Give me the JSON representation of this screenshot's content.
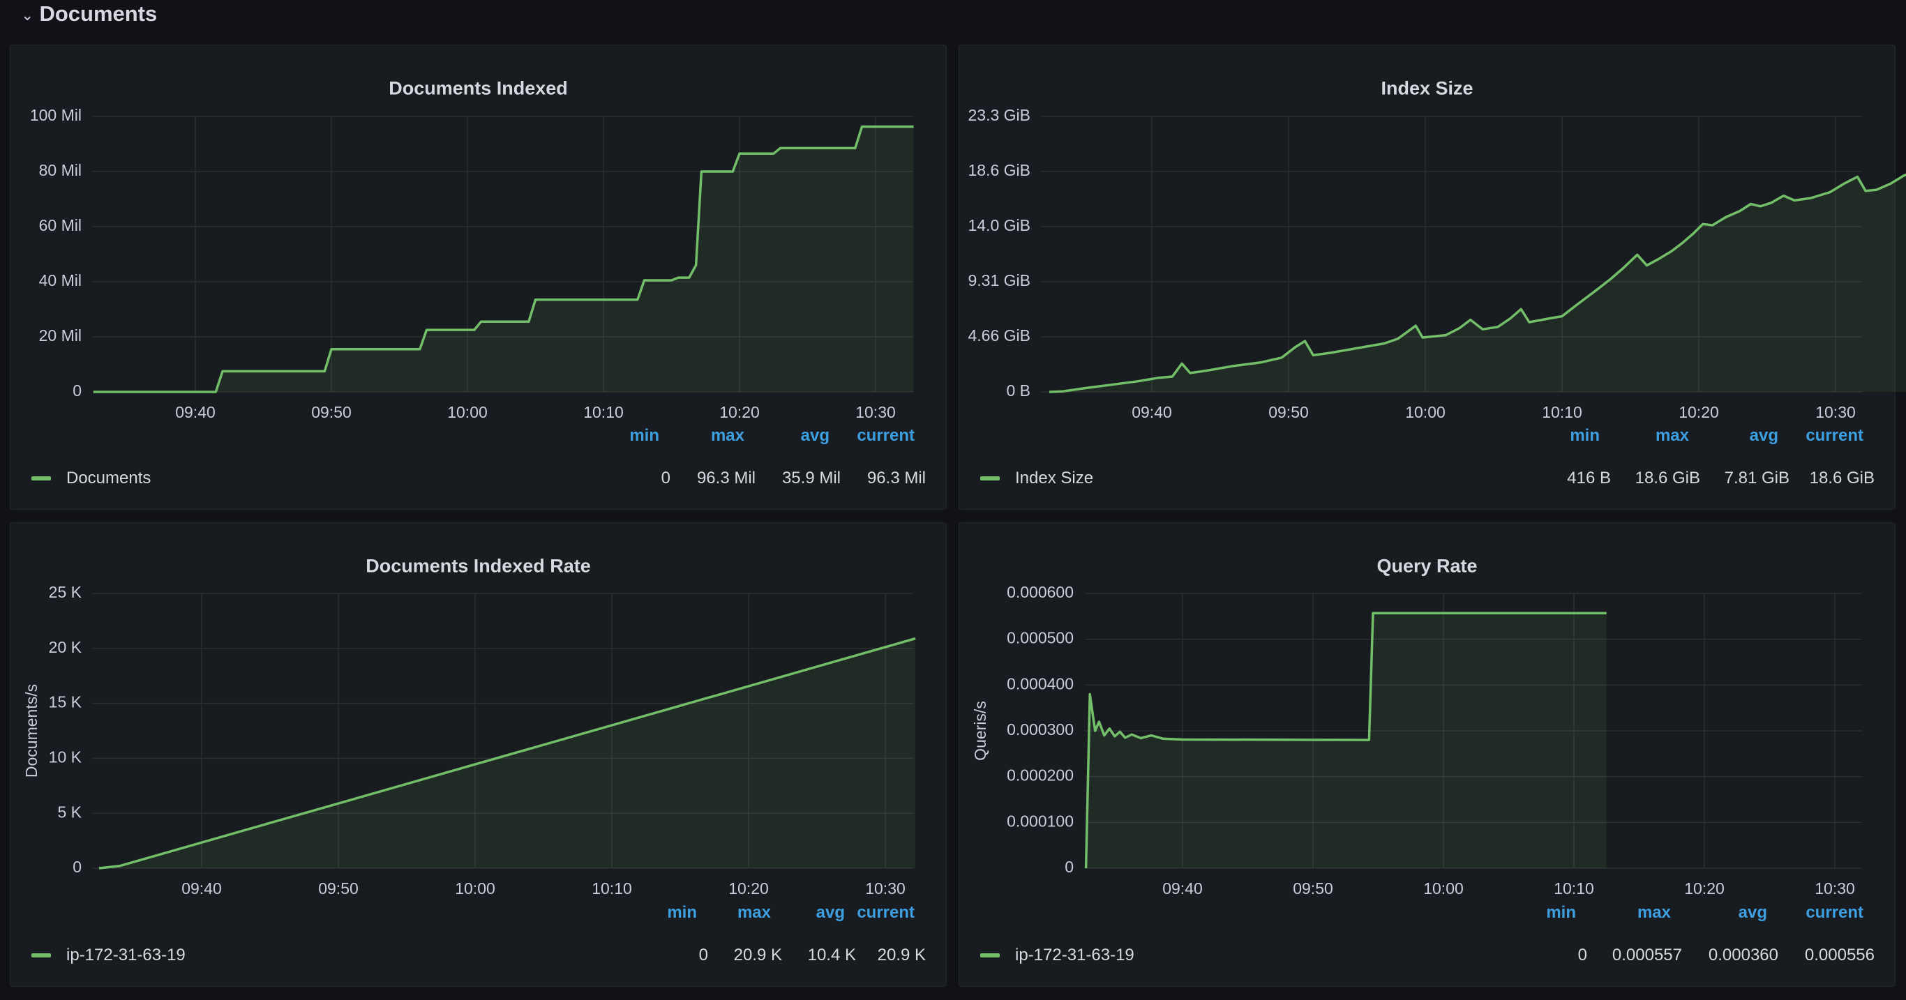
{
  "row": {
    "chevron": "⌄",
    "title": "Documents"
  },
  "colors": {
    "series": "#73bf69",
    "fill": "rgba(115,191,105,0.10)",
    "grid": "#2c2e33",
    "stat_header": "#3d9fe0"
  },
  "stat_headers": [
    "min",
    "max",
    "avg",
    "current"
  ],
  "panels": [
    {
      "title": "Documents Indexed",
      "legend": "Documents",
      "stats": [
        "0",
        "96.3 Mil",
        "35.9 Mil",
        "96.3 Mil"
      ],
      "chart_data": {
        "type": "area",
        "ylabel": "",
        "x_ticks": [
          "09:40",
          "09:50",
          "10:00",
          "10:10",
          "10:20",
          "10:30"
        ],
        "y_ticks": [
          "0",
          "20 Mil",
          "40 Mil",
          "60 Mil",
          "80 Mil",
          "100 Mil"
        ],
        "ylim": [
          0,
          100
        ],
        "x_unit": "minutes after 09:40",
        "series": [
          {
            "name": "Documents",
            "points": [
              [
                -7.5,
                0
              ],
              [
                1.5,
                0
              ],
              [
                2.0,
                7.5
              ],
              [
                9.5,
                7.5
              ],
              [
                10.0,
                15.5
              ],
              [
                16.5,
                15.5
              ],
              [
                17.0,
                22.5
              ],
              [
                20.5,
                22.5
              ],
              [
                21.0,
                25.5
              ],
              [
                24.5,
                25.5
              ],
              [
                25.0,
                33.5
              ],
              [
                32.5,
                33.5
              ],
              [
                33.0,
                40.5
              ],
              [
                35.0,
                40.5
              ],
              [
                35.5,
                41.5
              ],
              [
                36.3,
                41.5
              ],
              [
                36.8,
                46
              ],
              [
                37.2,
                80
              ],
              [
                39.5,
                80
              ],
              [
                40.0,
                86.5
              ],
              [
                42.5,
                86.5
              ],
              [
                43.0,
                88.5
              ],
              [
                48.5,
                88.5
              ],
              [
                49.0,
                96.3
              ],
              [
                52.8,
                96.3
              ]
            ]
          }
        ]
      }
    },
    {
      "title": "Index Size",
      "legend": "Index Size",
      "stats": [
        "416 B",
        "18.6 GiB",
        "7.81 GiB",
        "18.6 GiB"
      ],
      "chart_data": {
        "type": "area",
        "ylabel": "",
        "x_ticks": [
          "09:40",
          "09:50",
          "10:00",
          "10:10",
          "10:20",
          "10:30"
        ],
        "y_ticks": [
          "0 B",
          "4.66 GiB",
          "9.31 GiB",
          "14.0 GiB",
          "18.6 GiB",
          "23.3 GiB"
        ],
        "ylim": [
          0,
          23.3
        ],
        "x_unit": "minutes after 09:40",
        "series": [
          {
            "name": "Index Size",
            "points": [
              [
                -7.5,
                0
              ],
              [
                -6.5,
                0.05
              ],
              [
                -5,
                0.3
              ],
              [
                -3,
                0.6
              ],
              [
                -1,
                0.9
              ],
              [
                0.5,
                1.2
              ],
              [
                1.5,
                1.3
              ],
              [
                2.2,
                2.4
              ],
              [
                2.8,
                1.6
              ],
              [
                4,
                1.8
              ],
              [
                6,
                2.2
              ],
              [
                8,
                2.5
              ],
              [
                9.5,
                2.9
              ],
              [
                10.5,
                3.8
              ],
              [
                11.2,
                4.3
              ],
              [
                11.8,
                3.1
              ],
              [
                13,
                3.3
              ],
              [
                15,
                3.7
              ],
              [
                17,
                4.1
              ],
              [
                18,
                4.5
              ],
              [
                19.3,
                5.6
              ],
              [
                19.8,
                4.6
              ],
              [
                21.5,
                4.8
              ],
              [
                22.5,
                5.4
              ],
              [
                23.3,
                6.1
              ],
              [
                24.2,
                5.3
              ],
              [
                25.3,
                5.5
              ],
              [
                26.2,
                6.2
              ],
              [
                27,
                7
              ],
              [
                27.6,
                5.9
              ],
              [
                29,
                6.2
              ],
              [
                30,
                6.4
              ],
              [
                31,
                7.3
              ],
              [
                32.5,
                8.6
              ],
              [
                33.5,
                9.5
              ],
              [
                34.5,
                10.5
              ],
              [
                35.5,
                11.6
              ],
              [
                36.2,
                10.7
              ],
              [
                37,
                11.2
              ],
              [
                38,
                11.9
              ],
              [
                38.8,
                12.6
              ],
              [
                39.6,
                13.4
              ],
              [
                40.3,
                14.2
              ],
              [
                41,
                14.1
              ],
              [
                42,
                14.8
              ],
              [
                43,
                15.3
              ],
              [
                43.8,
                15.9
              ],
              [
                44.5,
                15.7
              ],
              [
                45.3,
                16.0
              ],
              [
                46.2,
                16.6
              ],
              [
                47,
                16.2
              ],
              [
                48.2,
                16.4
              ],
              [
                49.6,
                16.9
              ],
              [
                50.6,
                17.6
              ],
              [
                51.6,
                18.2
              ],
              [
                52.2,
                17
              ],
              [
                53,
                17.1
              ],
              [
                54,
                17.6
              ],
              [
                55,
                18.3
              ],
              [
                55.6,
                18.6
              ]
            ]
          }
        ]
      }
    },
    {
      "title": "Documents Indexed Rate",
      "legend": "ip-172-31-63-19",
      "stats": [
        "0",
        "20.9 K",
        "10.4 K",
        "20.9 K"
      ],
      "chart_data": {
        "type": "area",
        "ylabel": "Documents/s",
        "x_ticks": [
          "09:40",
          "09:50",
          "10:00",
          "10:10",
          "10:20",
          "10:30"
        ],
        "y_ticks": [
          "0",
          "5 K",
          "10 K",
          "15 K",
          "20 K",
          "25 K"
        ],
        "ylim": [
          0,
          25
        ],
        "x_unit": "minutes after 09:40",
        "series": [
          {
            "name": "ip-172-31-63-19",
            "points": [
              [
                -7.5,
                0
              ],
              [
                -6,
                0.2
              ],
              [
                52.2,
                20.9
              ]
            ]
          }
        ]
      }
    },
    {
      "title": "Query Rate",
      "legend": "ip-172-31-63-19",
      "stats": [
        "0",
        "0.000557",
        "0.000360",
        "0.000556"
      ],
      "chart_data": {
        "type": "area",
        "ylabel": "Queris/s",
        "x_ticks": [
          "09:40",
          "09:50",
          "10:00",
          "10:10",
          "10:20",
          "10:30"
        ],
        "y_ticks": [
          "0",
          "0.000100",
          "0.000200",
          "0.000300",
          "0.000400",
          "0.000500",
          "0.000600"
        ],
        "ylim": [
          0,
          0.0006
        ],
        "x_unit": "minutes after 09:40",
        "series": [
          {
            "name": "ip-172-31-63-19",
            "points": [
              [
                -7.4,
                0
              ],
              [
                -7.1,
                0.00038
              ],
              [
                -6.7,
                0.0003
              ],
              [
                -6.4,
                0.00032
              ],
              [
                -6.0,
                0.00029
              ],
              [
                -5.6,
                0.000305
              ],
              [
                -5.2,
                0.000288
              ],
              [
                -4.8,
                0.000298
              ],
              [
                -4.4,
                0.000285
              ],
              [
                -3.9,
                0.000292
              ],
              [
                -3.2,
                0.000284
              ],
              [
                -2.4,
                0.00029
              ],
              [
                -1.5,
                0.000283
              ],
              [
                0,
                0.000281
              ],
              [
                14.3,
                0.00028
              ],
              [
                14.6,
                0.000557
              ],
              [
                32.5,
                0.000557
              ]
            ]
          }
        ]
      }
    }
  ]
}
